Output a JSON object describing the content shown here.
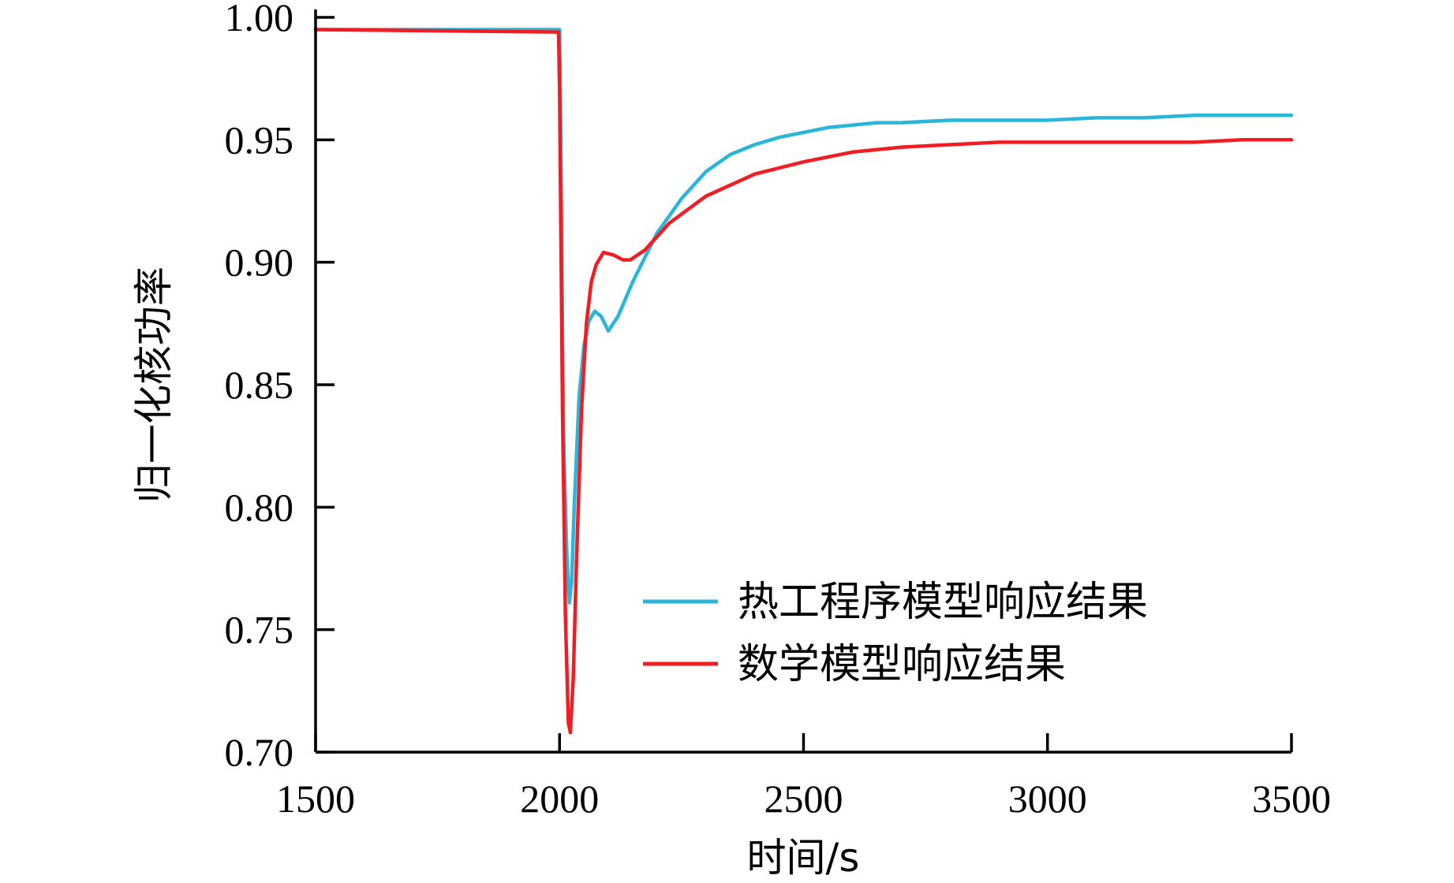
{
  "chart_data": {
    "type": "line",
    "title": "",
    "xlabel": "时间/s",
    "ylabel": "归一化核功率",
    "xlim": [
      1500,
      3500
    ],
    "ylim": [
      0.7,
      1.0
    ],
    "xticks": [
      1500,
      2000,
      2500,
      3000,
      3500
    ],
    "xtick_labels": [
      "1500",
      "2000",
      "2500",
      "3000",
      "3500"
    ],
    "yticks": [
      0.7,
      0.75,
      0.8,
      0.85,
      0.9,
      0.95,
      1.0
    ],
    "ytick_labels": [
      "0.70",
      "0.75",
      "0.80",
      "0.85",
      "0.90",
      "0.95",
      "1.00"
    ],
    "grid": false,
    "legend_position": "lower-right",
    "series": [
      {
        "name": "热工程序模型响应结果",
        "color": "#29b6d9",
        "x": [
          1500,
          2000,
          2002,
          2008,
          2015,
          2020,
          2025,
          2030,
          2040,
          2050,
          2060,
          2072,
          2085,
          2100,
          2120,
          2150,
          2200,
          2250,
          2300,
          2350,
          2400,
          2450,
          2500,
          2550,
          2600,
          2650,
          2700,
          2800,
          2900,
          3000,
          3100,
          3200,
          3300,
          3400,
          3500
        ],
        "values": [
          0.995,
          0.995,
          0.96,
          0.83,
          0.78,
          0.761,
          0.77,
          0.8,
          0.845,
          0.866,
          0.876,
          0.88,
          0.878,
          0.872,
          0.878,
          0.892,
          0.912,
          0.926,
          0.937,
          0.944,
          0.948,
          0.951,
          0.953,
          0.955,
          0.956,
          0.957,
          0.957,
          0.958,
          0.958,
          0.958,
          0.959,
          0.959,
          0.96,
          0.96,
          0.96
        ]
      },
      {
        "name": "数学模型响应结果",
        "color": "#f01e23",
        "x": [
          1500,
          1998,
          2000,
          2006,
          2012,
          2018,
          2022,
          2028,
          2035,
          2045,
          2055,
          2065,
          2075,
          2090,
          2110,
          2130,
          2145,
          2175,
          2225,
          2300,
          2400,
          2500,
          2600,
          2700,
          2800,
          2900,
          3000,
          3100,
          3200,
          3300,
          3400,
          3500
        ],
        "values": [
          0.995,
          0.994,
          0.97,
          0.84,
          0.755,
          0.712,
          0.708,
          0.73,
          0.78,
          0.84,
          0.875,
          0.892,
          0.899,
          0.904,
          0.903,
          0.901,
          0.901,
          0.905,
          0.916,
          0.927,
          0.936,
          0.941,
          0.945,
          0.947,
          0.948,
          0.949,
          0.949,
          0.949,
          0.949,
          0.949,
          0.95,
          0.95
        ]
      }
    ]
  }
}
